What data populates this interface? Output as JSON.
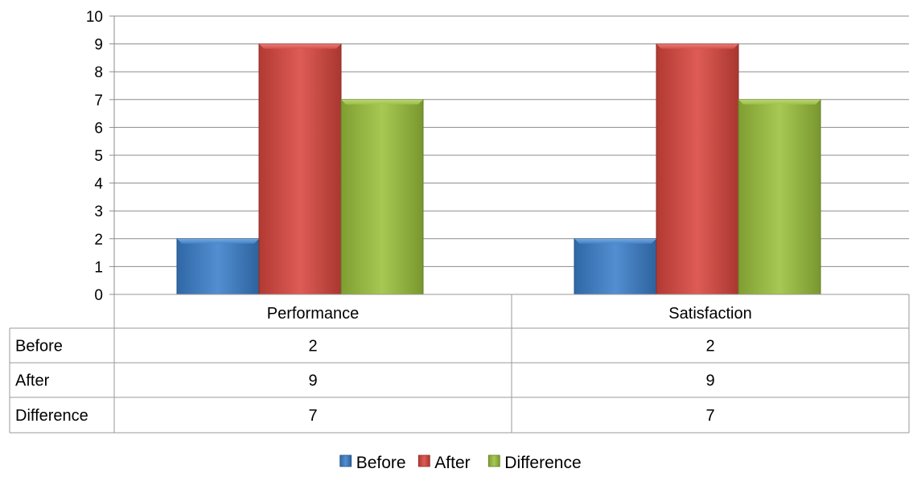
{
  "chart_data": {
    "type": "bar",
    "title": "",
    "xlabel": "",
    "ylabel": "",
    "ylim": [
      0,
      10
    ],
    "yticks": [
      "0",
      "1",
      "2",
      "3",
      "4",
      "5",
      "6",
      "7",
      "8",
      "9",
      "10"
    ],
    "grid": true,
    "legend_placement": "bottom",
    "categories": [
      "Performance",
      "Satisfaction"
    ],
    "series": [
      {
        "name": "Before",
        "values": [
          2,
          2
        ],
        "color": "#3a7fcb"
      },
      {
        "name": "After",
        "values": [
          9,
          9
        ],
        "color": "#d9463e"
      },
      {
        "name": "Difference",
        "values": [
          7,
          7
        ],
        "color": "#9bc13c"
      }
    ],
    "data_table": {
      "row_labels": [
        "Before",
        "After",
        "Difference"
      ],
      "rows": [
        [
          "2",
          "2"
        ],
        [
          "9",
          "9"
        ],
        [
          "7",
          "7"
        ]
      ]
    }
  }
}
